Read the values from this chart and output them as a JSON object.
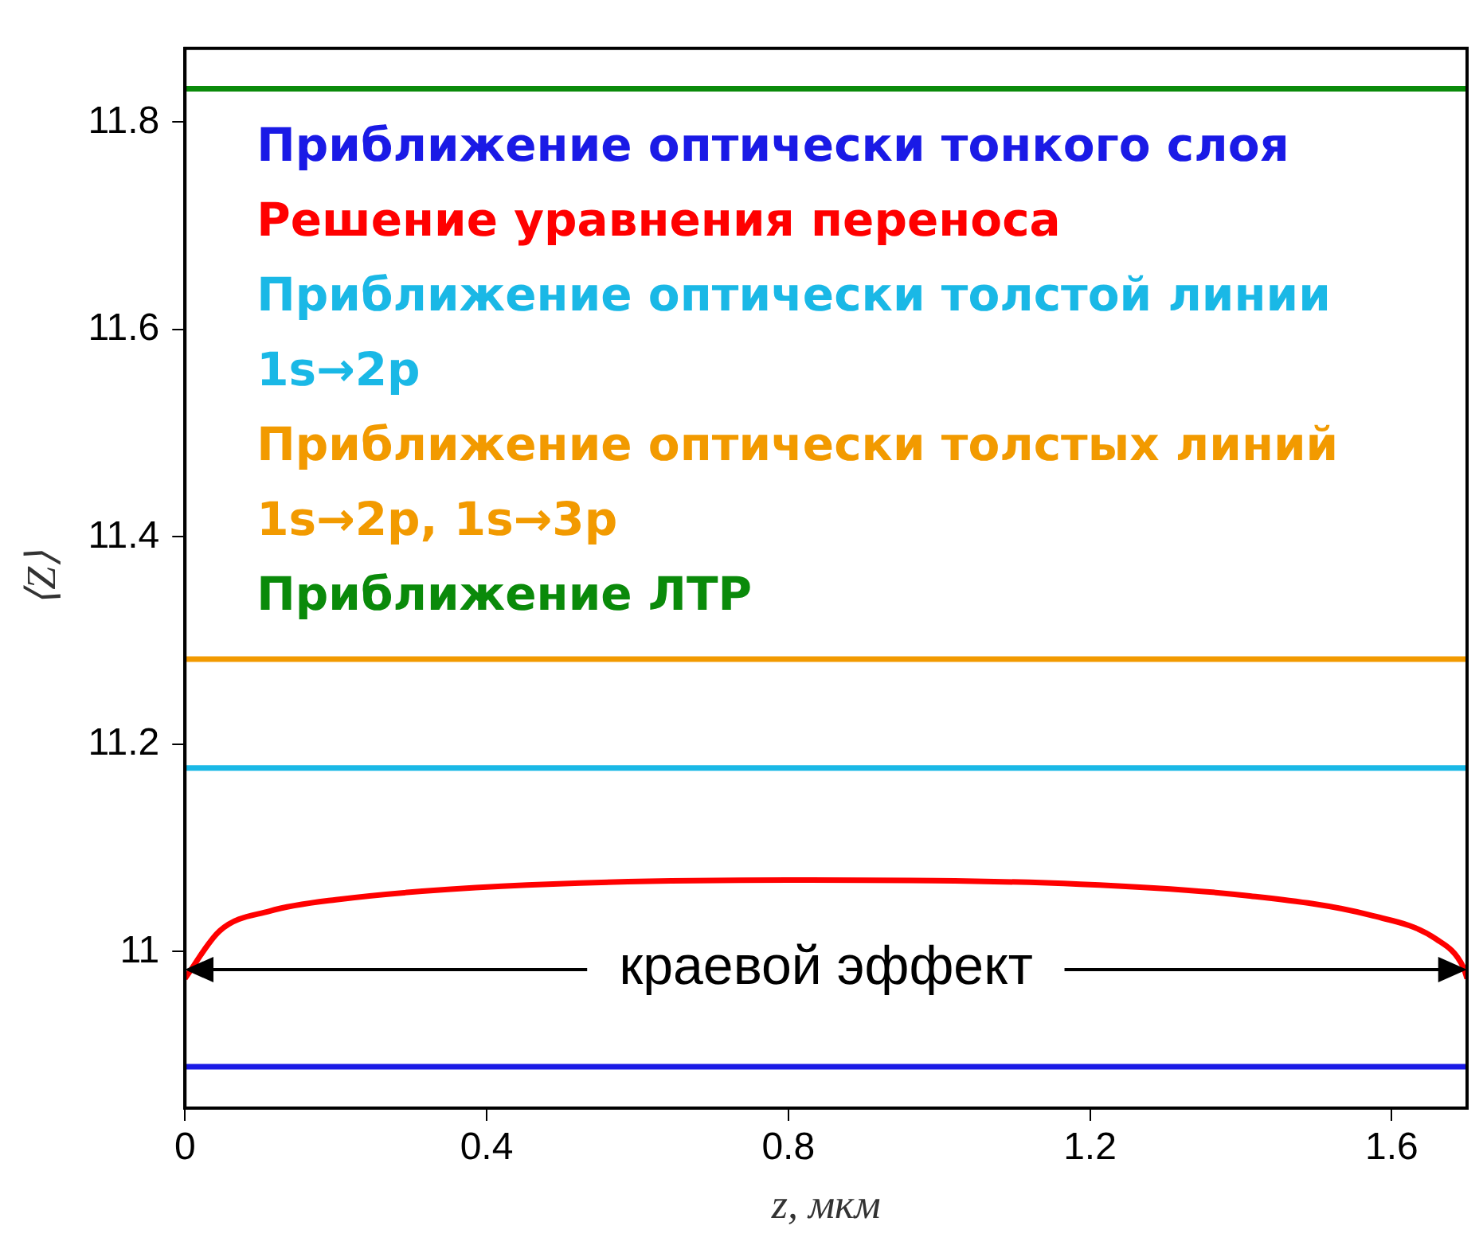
{
  "chart_data": {
    "type": "line",
    "xlabel": "z, мкм",
    "ylabel": "⟨Z⟩",
    "xlim": [
      0,
      1.7
    ],
    "xticks": [
      0,
      0.4,
      0.8,
      1.2,
      1.6
    ],
    "ylim": [
      10.849,
      11.871
    ],
    "yticks": [
      11,
      11.2,
      11.4,
      11.6,
      11.8
    ],
    "grid": false,
    "legend": "top left",
    "marker": "none",
    "line_style": "solid",
    "series": [
      {
        "name": "Приближение оптически тонкого слоя",
        "color": "#1a1ae6",
        "x": [
          0,
          1.7
        ],
        "values": [
          10.889,
          10.889
        ]
      },
      {
        "name": "Решение уравнения переноса",
        "color": "#ff0000",
        "x": [
          0,
          0.046,
          0.112,
          0.2,
          0.42,
          0.8,
          1.187,
          1.407,
          1.572,
          1.659,
          1.695,
          1.7
        ],
        "values": [
          10.974,
          11.02,
          11.039,
          11.05,
          11.063,
          11.069,
          11.065,
          11.054,
          11.035,
          11.012,
          10.985,
          10.974
        ]
      },
      {
        "name": "Приближение оптически толстой линии 1s→2p",
        "color": "#1ab8e6",
        "x": [
          0,
          1.7
        ],
        "values": [
          11.177,
          11.177
        ]
      },
      {
        "name": "Приближение оптически толстых линий 1s→2p, 1s→3p",
        "color": "#f29a00",
        "x": [
          0,
          1.7
        ],
        "values": [
          11.282,
          11.282
        ]
      },
      {
        "name": "Приближение ЛТР",
        "color": "#0a8a0a",
        "x": [
          0,
          1.7
        ],
        "values": [
          11.832,
          11.832
        ]
      }
    ],
    "annotations": [
      "краевой эффект"
    ]
  }
}
